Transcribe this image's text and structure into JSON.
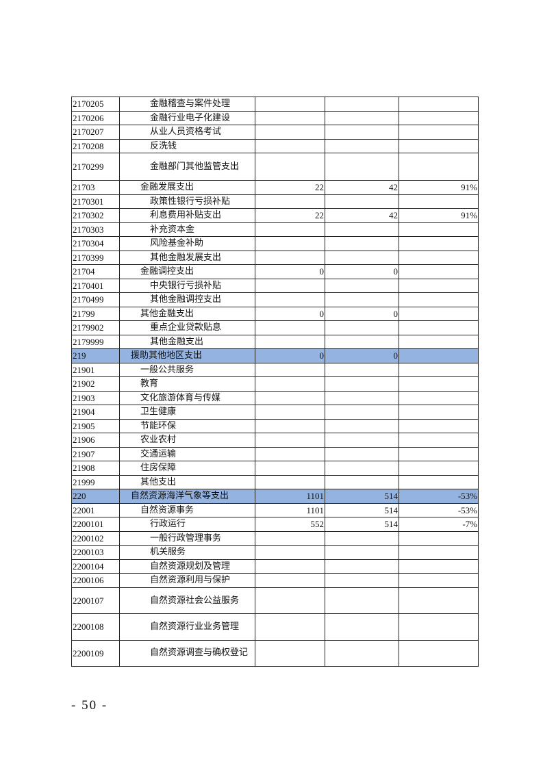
{
  "highlight_color": "#95b3e0",
  "rows": [
    {
      "code": "2170205",
      "name": "金融稽查与案件处理",
      "level": 3,
      "a": "",
      "b": "",
      "c": ""
    },
    {
      "code": "2170206",
      "name": "金融行业电子化建设",
      "level": 3,
      "a": "",
      "b": "",
      "c": ""
    },
    {
      "code": "2170207",
      "name": "从业人员资格考试",
      "level": 3,
      "a": "",
      "b": "",
      "c": ""
    },
    {
      "code": "2170208",
      "name": "反洗钱",
      "level": 3,
      "a": "",
      "b": "",
      "c": ""
    },
    {
      "code": "2170299",
      "name": "金融部门其他监管支出",
      "level": 3,
      "a": "",
      "b": "",
      "c": "",
      "tall": true
    },
    {
      "code": "21703",
      "name": "金融发展支出",
      "level": 2,
      "a": "22",
      "b": "42",
      "c": "91%"
    },
    {
      "code": "2170301",
      "name": "政策性银行亏损补贴",
      "level": 3,
      "a": "",
      "b": "",
      "c": ""
    },
    {
      "code": "2170302",
      "name": "利息费用补贴支出",
      "level": 3,
      "a": "22",
      "b": "42",
      "c": "91%"
    },
    {
      "code": "2170303",
      "name": "补充资本金",
      "level": 3,
      "a": "",
      "b": "",
      "c": ""
    },
    {
      "code": "2170304",
      "name": "风险基金补助",
      "level": 3,
      "a": "",
      "b": "",
      "c": ""
    },
    {
      "code": "2170399",
      "name": "其他金融发展支出",
      "level": 3,
      "a": "",
      "b": "",
      "c": ""
    },
    {
      "code": "21704",
      "name": "金融调控支出",
      "level": 2,
      "a": "0",
      "b": "0",
      "c": ""
    },
    {
      "code": "2170401",
      "name": "中央银行亏损补贴",
      "level": 3,
      "a": "",
      "b": "",
      "c": ""
    },
    {
      "code": "2170499",
      "name": "其他金融调控支出",
      "level": 3,
      "a": "",
      "b": "",
      "c": ""
    },
    {
      "code": "21799",
      "name": "其他金融支出",
      "level": 2,
      "a": "0",
      "b": "0",
      "c": ""
    },
    {
      "code": "2179902",
      "name": "重点企业贷款贴息",
      "level": 3,
      "a": "",
      "b": "",
      "c": ""
    },
    {
      "code": "2179999",
      "name": "其他金融支出",
      "level": 3,
      "a": "",
      "b": "",
      "c": ""
    },
    {
      "code": "219",
      "name": "援助其他地区支出",
      "level": 1,
      "a": "0",
      "b": "0",
      "c": "",
      "highlight": true
    },
    {
      "code": "21901",
      "name": "一般公共服务",
      "level": 2,
      "a": "",
      "b": "",
      "c": ""
    },
    {
      "code": "21902",
      "name": "教育",
      "level": 2,
      "a": "",
      "b": "",
      "c": ""
    },
    {
      "code": "21903",
      "name": "文化旅游体育与传媒",
      "level": 2,
      "a": "",
      "b": "",
      "c": ""
    },
    {
      "code": "21904",
      "name": "卫生健康",
      "level": 2,
      "a": "",
      "b": "",
      "c": ""
    },
    {
      "code": "21905",
      "name": "节能环保",
      "level": 2,
      "a": "",
      "b": "",
      "c": ""
    },
    {
      "code": "21906",
      "name": "农业农村",
      "level": 2,
      "a": "",
      "b": "",
      "c": ""
    },
    {
      "code": "21907",
      "name": "交通运输",
      "level": 2,
      "a": "",
      "b": "",
      "c": ""
    },
    {
      "code": "21908",
      "name": "住房保障",
      "level": 2,
      "a": "",
      "b": "",
      "c": ""
    },
    {
      "code": "21999",
      "name": "其他支出",
      "level": 2,
      "a": "",
      "b": "",
      "c": ""
    },
    {
      "code": "220",
      "name": "自然资源海洋气象等支出",
      "level": 1,
      "a": "1101",
      "b": "514",
      "c": "-53%",
      "highlight": true
    },
    {
      "code": "22001",
      "name": "自然资源事务",
      "level": 2,
      "a": "1101",
      "b": "514",
      "c": "-53%"
    },
    {
      "code": "2200101",
      "name": "行政运行",
      "level": 3,
      "a": "552",
      "b": "514",
      "c": "-7%"
    },
    {
      "code": "2200102",
      "name": "一般行政管理事务",
      "level": 3,
      "a": "",
      "b": "",
      "c": ""
    },
    {
      "code": "2200103",
      "name": "机关服务",
      "level": 3,
      "a": "",
      "b": "",
      "c": ""
    },
    {
      "code": "2200104",
      "name": "自然资源规划及管理",
      "level": 3,
      "a": "",
      "b": "",
      "c": ""
    },
    {
      "code": "2200106",
      "name": "自然资源利用与保护",
      "level": 3,
      "a": "",
      "b": "",
      "c": ""
    },
    {
      "code": "2200107",
      "name": "自然资源社会公益服务",
      "level": 3,
      "a": "",
      "b": "",
      "c": "",
      "tall2": true
    },
    {
      "code": "2200108",
      "name": "自然资源行业业务管理",
      "level": 3,
      "a": "",
      "b": "",
      "c": "",
      "tall2": true
    },
    {
      "code": "2200109",
      "name": "自然资源调查与确权登记",
      "level": 3,
      "a": "",
      "b": "",
      "c": "",
      "tall2": true,
      "wrap": true
    }
  ],
  "page_number": "- 50 -"
}
